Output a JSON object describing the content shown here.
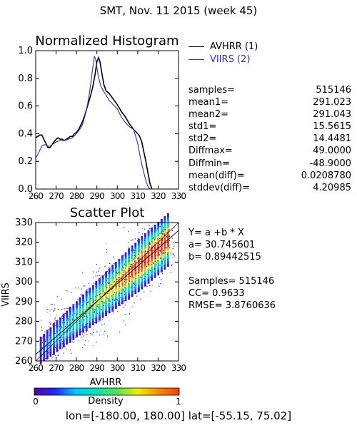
{
  "header": {
    "title": "SMT,  Nov. 11 2015 (week 45)"
  },
  "histogram": {
    "legend": [
      {
        "label": "AVHRR (1)",
        "color": "#000000"
      },
      {
        "label": "VIIRS (2)",
        "color": "#2d2dc8"
      }
    ]
  },
  "stats": [
    {
      "label": "samples=",
      "value": "515146"
    },
    {
      "label": "mean1=",
      "value": "291.023"
    },
    {
      "label": "mean2=",
      "value": "291.043"
    },
    {
      "label": "std1=",
      "value": "15.5615"
    },
    {
      "label": "std2=",
      "value": "14.4481"
    },
    {
      "label": "Diffmax=",
      "value": "49.0000"
    },
    {
      "label": "Diffmin=",
      "value": "-48.9000"
    },
    {
      "label": "mean(diff)=",
      "value": "0.0208780"
    },
    {
      "label": "stddev(diff)=",
      "value": "4.20985"
    }
  ],
  "fit": {
    "equation": "Y= a +b * X",
    "a": "a= 30.745601",
    "b": "b= 0.89442515",
    "samples": "Samples= 515146",
    "cc": "CC=  0.9633",
    "rmse": "RMSE= 3.8760636"
  },
  "colorbar": {
    "min_label": "0",
    "max_label": "1",
    "title": "Density"
  },
  "footer": {
    "text": "lon=[-180.00, 180.00] lat=[-55.15, 75.02]"
  },
  "chart_data": [
    {
      "type": "line",
      "title": "Normalized Histogram",
      "xlim": [
        260,
        330
      ],
      "ylim": [
        0,
        1.0
      ],
      "x_ticks": [
        260,
        270,
        280,
        290,
        300,
        310,
        320,
        330
      ],
      "y_ticks": [
        0.0,
        0.2,
        0.4,
        0.6,
        0.8,
        1.0
      ],
      "x_tick_labels": [
        "260",
        "270",
        "280",
        "290",
        "300",
        "310",
        "320",
        "330"
      ],
      "y_tick_labels": [
        "0.0",
        "0.2",
        "0.4",
        "0.6",
        "0.8",
        "1.0"
      ],
      "series": [
        {
          "name": "AVHRR (1)",
          "color": "#000000",
          "points": [
            [
              260,
              0.37
            ],
            [
              261,
              0.38
            ],
            [
              262,
              0.39
            ],
            [
              263,
              0.39
            ],
            [
              264,
              0.36
            ],
            [
              265,
              0.33
            ],
            [
              266,
              0.3
            ],
            [
              267,
              0.3
            ],
            [
              268,
              0.32
            ],
            [
              269,
              0.34
            ],
            [
              270,
              0.36
            ],
            [
              271,
              0.37
            ],
            [
              272,
              0.36
            ],
            [
              273,
              0.36
            ],
            [
              274,
              0.35
            ],
            [
              275,
              0.36
            ],
            [
              276,
              0.37
            ],
            [
              277,
              0.38
            ],
            [
              278,
              0.38
            ],
            [
              279,
              0.4
            ],
            [
              280,
              0.41
            ],
            [
              281,
              0.43
            ],
            [
              282,
              0.46
            ],
            [
              283,
              0.49
            ],
            [
              284,
              0.53
            ],
            [
              285,
              0.58
            ],
            [
              286,
              0.63
            ],
            [
              287,
              0.68
            ],
            [
              288,
              0.74
            ],
            [
              289,
              0.82
            ],
            [
              290,
              0.92
            ],
            [
              290.8,
              0.95
            ],
            [
              291.5,
              0.92
            ],
            [
              292.5,
              0.83
            ],
            [
              293.5,
              0.75
            ],
            [
              294.5,
              0.71
            ],
            [
              296,
              0.69
            ],
            [
              298,
              0.65
            ],
            [
              300,
              0.61
            ],
            [
              302,
              0.56
            ],
            [
              304,
              0.52
            ],
            [
              306,
              0.47
            ],
            [
              308,
              0.43
            ],
            [
              310,
              0.4
            ],
            [
              311,
              0.38
            ],
            [
              312,
              0.34
            ],
            [
              313,
              0.27
            ],
            [
              314,
              0.2
            ],
            [
              315,
              0.12
            ],
            [
              316,
              0.04
            ],
            [
              317,
              0.0
            ]
          ]
        },
        {
          "name": "VIIRS (2)",
          "color": "#2d2dc8",
          "points": [
            [
              260,
              0.22
            ],
            [
              261,
              0.25
            ],
            [
              262,
              0.28
            ],
            [
              263,
              0.31
            ],
            [
              264,
              0.32
            ],
            [
              265,
              0.32
            ],
            [
              266,
              0.31
            ],
            [
              267,
              0.31
            ],
            [
              268,
              0.32
            ],
            [
              269,
              0.33
            ],
            [
              270,
              0.34
            ],
            [
              272,
              0.35
            ],
            [
              274,
              0.35
            ],
            [
              276,
              0.36
            ],
            [
              278,
              0.37
            ],
            [
              280,
              0.4
            ],
            [
              282,
              0.44
            ],
            [
              283,
              0.47
            ],
            [
              284,
              0.52
            ],
            [
              285,
              0.58
            ],
            [
              286,
              0.66
            ],
            [
              287,
              0.76
            ],
            [
              288,
              0.88
            ],
            [
              288.8,
              0.96
            ],
            [
              289.5,
              0.93
            ],
            [
              290.5,
              0.83
            ],
            [
              292,
              0.74
            ],
            [
              294,
              0.69
            ],
            [
              296,
              0.64
            ],
            [
              298,
              0.61
            ],
            [
              300,
              0.58
            ],
            [
              302,
              0.52
            ],
            [
              304,
              0.48
            ],
            [
              306,
              0.45
            ],
            [
              308,
              0.43
            ],
            [
              310,
              0.33
            ],
            [
              311,
              0.25
            ],
            [
              312,
              0.18
            ],
            [
              313,
              0.12
            ],
            [
              314,
              0.06
            ],
            [
              315,
              0.02
            ],
            [
              316,
              0.0
            ]
          ]
        }
      ]
    },
    {
      "type": "scatter",
      "title": "Scatter Plot",
      "xlabel": "AVHRR",
      "ylabel": "VIIRS",
      "xlim": [
        260,
        330
      ],
      "ylim": [
        260,
        330
      ],
      "x_ticks": [
        260,
        270,
        280,
        290,
        300,
        310,
        320,
        330
      ],
      "y_ticks": [
        260,
        270,
        280,
        290,
        300,
        310,
        320,
        330
      ],
      "x_tick_labels": [
        "260",
        "270",
        "280",
        "290",
        "300",
        "310",
        "320",
        "330"
      ],
      "y_tick_labels": [
        "260",
        "270",
        "280",
        "290",
        "300",
        "310",
        "320",
        "330"
      ],
      "fit_line": {
        "a": 30.745601,
        "b": 0.89442515,
        "color": "#000000"
      },
      "one_to_one_line": true,
      "density_colormap": [
        "#ffffff",
        "#5a00a0",
        "#1e28ff",
        "#00c8ff",
        "#00e6b4",
        "#50e650",
        "#f0f000",
        "#ff8c00",
        "#ff3c00"
      ],
      "density_range": [
        0,
        1
      ]
    }
  ]
}
